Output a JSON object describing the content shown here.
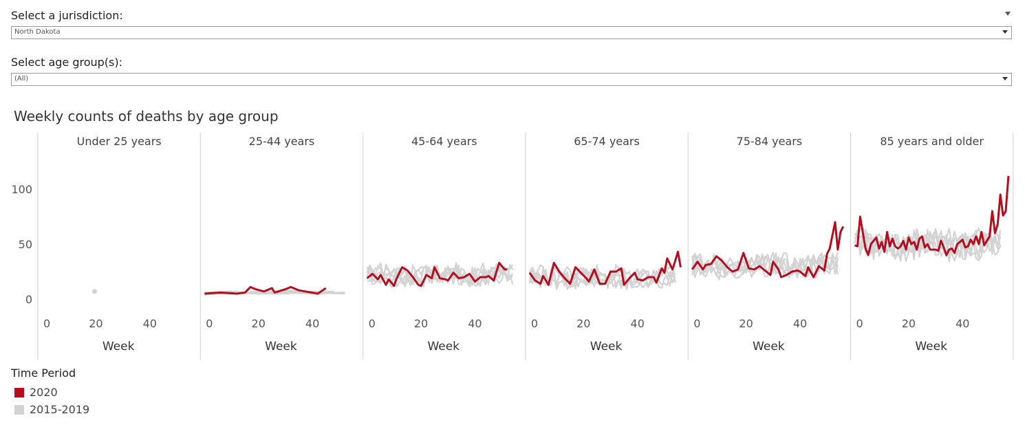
{
  "filters": {
    "jurisdiction": {
      "label": "Select a jurisdiction:",
      "value": "North Dakota"
    },
    "age_group": {
      "label": "Select age group(s):",
      "value": "(All)"
    }
  },
  "legend": {
    "title": "Time Period",
    "items": [
      {
        "label": "2020",
        "color": "#b30e1f"
      },
      {
        "label": "2015-2019",
        "color": "#d3d3d3"
      }
    ]
  },
  "chart_data": {
    "type": "line",
    "title": "Weekly counts of deaths by age group",
    "xlabel": "Week",
    "ylabel": "",
    "yticks": [
      0,
      50,
      100
    ],
    "xticks": [
      0,
      20,
      40
    ],
    "ylim": [
      -15,
      125
    ],
    "xlim": [
      0,
      57
    ],
    "colors": {
      "2020": "#b30e1f",
      "2015-2019": "#d3d3d3"
    },
    "panels": [
      {
        "name": "Under 25 years",
        "point_2015_2019": {
          "x": 19.5,
          "y": 7
        },
        "series_2020": [],
        "series_2015_2019_band": {
          "low": [],
          "high": []
        }
      },
      {
        "name": "25-44 years",
        "series_2020": [
          [
            0,
            5
          ],
          [
            6,
            6
          ],
          [
            12,
            5
          ],
          [
            15,
            6
          ],
          [
            17,
            11
          ],
          [
            19,
            9
          ],
          [
            22,
            7
          ],
          [
            25,
            10
          ],
          [
            26,
            6
          ],
          [
            30,
            9
          ],
          [
            32,
            11
          ],
          [
            35,
            8
          ],
          [
            42,
            5
          ],
          [
            45,
            10
          ]
        ],
        "background_2015_2019": [
          [
            [
              0,
              5
            ],
            [
              10,
              6
            ],
            [
              20,
              6
            ],
            [
              30,
              7
            ],
            [
              40,
              6
            ],
            [
              52,
              5
            ]
          ],
          [
            [
              0,
              6
            ],
            [
              10,
              5
            ],
            [
              20,
              7
            ],
            [
              30,
              6
            ],
            [
              40,
              5
            ],
            [
              52,
              6
            ]
          ],
          [
            [
              0,
              4
            ],
            [
              10,
              6
            ],
            [
              20,
              5
            ],
            [
              30,
              5
            ],
            [
              40,
              7
            ],
            [
              52,
              5
            ]
          ],
          [
            [
              0,
              5
            ],
            [
              10,
              5
            ],
            [
              20,
              6
            ],
            [
              30,
              8
            ],
            [
              40,
              6
            ],
            [
              48,
              7
            ]
          ],
          [
            [
              0,
              6
            ],
            [
              10,
              7
            ],
            [
              20,
              5
            ],
            [
              30,
              6
            ],
            [
              40,
              5
            ],
            [
              52,
              6
            ]
          ]
        ]
      },
      {
        "name": "45-64 years",
        "series_2020": [
          [
            0,
            19
          ],
          [
            2,
            23
          ],
          [
            4,
            18
          ],
          [
            5,
            22
          ],
          [
            7,
            13
          ],
          [
            8,
            18
          ],
          [
            10,
            12
          ],
          [
            11,
            19
          ],
          [
            13,
            29
          ],
          [
            15,
            26
          ],
          [
            17,
            20
          ],
          [
            19,
            13
          ],
          [
            20,
            12
          ],
          [
            22,
            22
          ],
          [
            24,
            19
          ],
          [
            25,
            29
          ],
          [
            27,
            19
          ],
          [
            29,
            18
          ],
          [
            30,
            17
          ],
          [
            32,
            24
          ],
          [
            34,
            19
          ],
          [
            36,
            20
          ],
          [
            38,
            23
          ],
          [
            40,
            16
          ],
          [
            42,
            20
          ],
          [
            44,
            20
          ],
          [
            45,
            21
          ],
          [
            47,
            17
          ],
          [
            49,
            33
          ],
          [
            51,
            27
          ],
          [
            52,
            27
          ]
        ],
        "gray_amp": [
          22,
          9
        ]
      },
      {
        "name": "65-74 years",
        "series_2020": [
          [
            0,
            24
          ],
          [
            2,
            17
          ],
          [
            4,
            14
          ],
          [
            5,
            21
          ],
          [
            7,
            13
          ],
          [
            9,
            33
          ],
          [
            11,
            25
          ],
          [
            13,
            19
          ],
          [
            15,
            14
          ],
          [
            17,
            29
          ],
          [
            19,
            24
          ],
          [
            21,
            19
          ],
          [
            22,
            16
          ],
          [
            24,
            27
          ],
          [
            26,
            14
          ],
          [
            28,
            14
          ],
          [
            30,
            25
          ],
          [
            32,
            25
          ],
          [
            34,
            28
          ],
          [
            35,
            13
          ],
          [
            37,
            19
          ],
          [
            39,
            24
          ],
          [
            40,
            18
          ],
          [
            42,
            17
          ],
          [
            44,
            20
          ],
          [
            46,
            20
          ],
          [
            47,
            15
          ],
          [
            49,
            28
          ],
          [
            50,
            24
          ],
          [
            51,
            37
          ],
          [
            53,
            27
          ],
          [
            55,
            43
          ],
          [
            56,
            29
          ]
        ],
        "gray_amp": [
          20,
          9
        ]
      },
      {
        "name": "75-84 years",
        "series_2020": [
          [
            0,
            27
          ],
          [
            2,
            34
          ],
          [
            4,
            27
          ],
          [
            5,
            31
          ],
          [
            7,
            32
          ],
          [
            9,
            39
          ],
          [
            11,
            35
          ],
          [
            13,
            29
          ],
          [
            15,
            25
          ],
          [
            17,
            27
          ],
          [
            19,
            42
          ],
          [
            21,
            28
          ],
          [
            23,
            27
          ],
          [
            25,
            30
          ],
          [
            27,
            26
          ],
          [
            29,
            22
          ],
          [
            30,
            34
          ],
          [
            32,
            27
          ],
          [
            33,
            20
          ],
          [
            35,
            22
          ],
          [
            37,
            25
          ],
          [
            39,
            26
          ],
          [
            40,
            25
          ],
          [
            42,
            21
          ],
          [
            43,
            29
          ],
          [
            45,
            20
          ],
          [
            47,
            30
          ],
          [
            49,
            26
          ],
          [
            50,
            41
          ],
          [
            51,
            46
          ],
          [
            53,
            70
          ],
          [
            54,
            45
          ],
          [
            55,
            61
          ],
          [
            56,
            66
          ]
        ],
        "gray_amp": [
          30,
          10
        ]
      },
      {
        "name": "85 years and older",
        "series_2020": [
          [
            0,
            49
          ],
          [
            1,
            48
          ],
          [
            2,
            75
          ],
          [
            4,
            46
          ],
          [
            5,
            40
          ],
          [
            6,
            50
          ],
          [
            8,
            56
          ],
          [
            9,
            46
          ],
          [
            10,
            52
          ],
          [
            11,
            43
          ],
          [
            12,
            61
          ],
          [
            13,
            48
          ],
          [
            14,
            55
          ],
          [
            15,
            48
          ],
          [
            16,
            46
          ],
          [
            17,
            48
          ],
          [
            18,
            53
          ],
          [
            19,
            45
          ],
          [
            20,
            56
          ],
          [
            21,
            50
          ],
          [
            22,
            52
          ],
          [
            23,
            45
          ],
          [
            24,
            55
          ],
          [
            25,
            57
          ],
          [
            26,
            47
          ],
          [
            27,
            50
          ],
          [
            28,
            45
          ],
          [
            30,
            45
          ],
          [
            31,
            44
          ],
          [
            32,
            53
          ],
          [
            33,
            47
          ],
          [
            34,
            40
          ],
          [
            35,
            45
          ],
          [
            36,
            46
          ],
          [
            37,
            42
          ],
          [
            38,
            50
          ],
          [
            40,
            54
          ],
          [
            41,
            47
          ],
          [
            42,
            48
          ],
          [
            43,
            54
          ],
          [
            44,
            50
          ],
          [
            45,
            57
          ],
          [
            46,
            50
          ],
          [
            47,
            61
          ],
          [
            48,
            49
          ],
          [
            50,
            57
          ],
          [
            51,
            80
          ],
          [
            52,
            60
          ],
          [
            53,
            68
          ],
          [
            54,
            95
          ],
          [
            55,
            76
          ],
          [
            56,
            80
          ],
          [
            57,
            112
          ]
        ],
        "gray_amp": [
          50,
          12
        ]
      }
    ]
  }
}
